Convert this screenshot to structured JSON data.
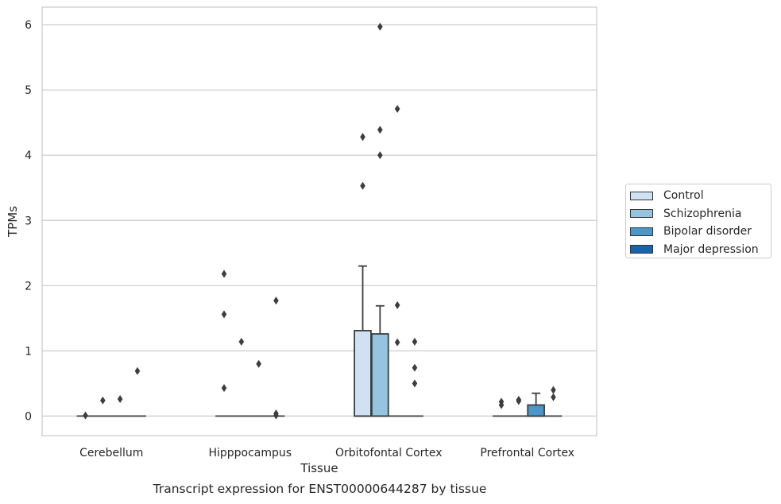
{
  "chart_data": {
    "type": "box",
    "title": "",
    "caption": "Transcript expression for ENST00000644287 by tissue",
    "xlabel": "Tissue",
    "ylabel": "TPMs",
    "ylim": [
      -0.3,
      6.27
    ],
    "yticks": [
      0,
      1,
      2,
      3,
      4,
      5,
      6
    ],
    "grid": "horizontal",
    "legend_position": "right",
    "categories": [
      "Cerebellum",
      "Hipppocampus",
      "Orbitofontal Cortex",
      "Prefrontal Cortex"
    ],
    "series": [
      {
        "name": "Control",
        "color": "#d0e1f2",
        "boxes": [
          {
            "q1": 0,
            "median": 0,
            "q3": 0,
            "whisker_low": 0,
            "whisker_high": 0,
            "outliers": [
              0.01
            ]
          },
          {
            "q1": 0,
            "median": 0,
            "q3": 0,
            "whisker_low": 0,
            "whisker_high": 0,
            "outliers": [
              2.18,
              1.56,
              0.43
            ]
          },
          {
            "q1": 0,
            "median": 0,
            "q3": 1.31,
            "whisker_low": 0,
            "whisker_high": 2.3,
            "outliers": [
              4.28,
              3.53
            ]
          },
          {
            "q1": 0,
            "median": 0,
            "q3": 0,
            "whisker_low": 0,
            "whisker_high": 0,
            "outliers": [
              0.22,
              0.17
            ]
          }
        ]
      },
      {
        "name": "Schizophrenia",
        "color": "#94c4df",
        "boxes": [
          {
            "q1": 0,
            "median": 0,
            "q3": 0,
            "whisker_low": 0,
            "whisker_high": 0,
            "outliers": [
              0.24
            ]
          },
          {
            "q1": 0,
            "median": 0,
            "q3": 0,
            "whisker_low": 0,
            "whisker_high": 0,
            "outliers": [
              1.14
            ]
          },
          {
            "q1": 0,
            "median": 0,
            "q3": 1.26,
            "whisker_low": 0,
            "whisker_high": 1.69,
            "outliers": [
              5.97,
              4.39,
              4.0
            ]
          },
          {
            "q1": 0,
            "median": 0,
            "q3": 0,
            "whisker_low": 0,
            "whisker_high": 0,
            "outliers": [
              0.25,
              0.23
            ]
          }
        ]
      },
      {
        "name": "Bipolar disorder",
        "color": "#4a98c9",
        "boxes": [
          {
            "q1": 0,
            "median": 0,
            "q3": 0,
            "whisker_low": 0,
            "whisker_high": 0,
            "outliers": [
              0.26
            ]
          },
          {
            "q1": 0,
            "median": 0,
            "q3": 0,
            "whisker_low": 0,
            "whisker_high": 0,
            "outliers": [
              0.8
            ]
          },
          {
            "q1": 0,
            "median": 0,
            "q3": 0,
            "whisker_low": 0,
            "whisker_high": 0,
            "outliers": [
              4.71,
              1.7,
              1.13
            ]
          },
          {
            "q1": 0,
            "median": 0,
            "q3": 0.17,
            "whisker_low": 0,
            "whisker_high": 0.35,
            "outliers": []
          }
        ]
      },
      {
        "name": "Major depression",
        "color": "#1764ab",
        "boxes": [
          {
            "q1": 0,
            "median": 0,
            "q3": 0,
            "whisker_low": 0,
            "whisker_high": 0,
            "outliers": [
              0.69
            ]
          },
          {
            "q1": 0,
            "median": 0,
            "q3": 0,
            "whisker_low": 0,
            "whisker_high": 0,
            "outliers": [
              1.77,
              0.04,
              0.01
            ]
          },
          {
            "q1": 0,
            "median": 0,
            "q3": 0,
            "whisker_low": 0,
            "whisker_high": 0,
            "outliers": [
              1.14,
              0.74,
              0.5
            ]
          },
          {
            "q1": 0,
            "median": 0,
            "q3": 0,
            "whisker_low": 0,
            "whisker_high": 0,
            "outliers": [
              0.4,
              0.29
            ]
          }
        ]
      }
    ]
  }
}
